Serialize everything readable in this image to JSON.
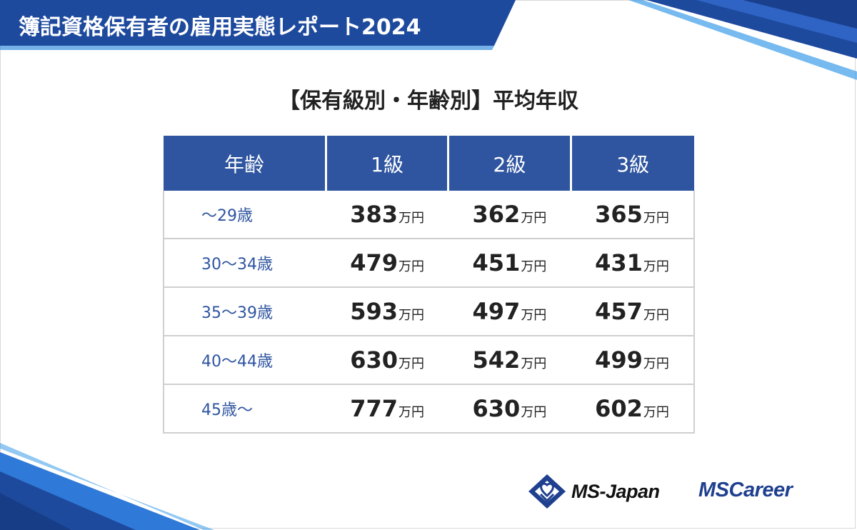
{
  "report": {
    "title": "簿記資格保有者の雇用実態レポート2024",
    "subtitle": "【保有級別・年齢別】平均年収"
  },
  "table": {
    "headers": [
      "年齢",
      "1級",
      "2級",
      "3級"
    ],
    "unit": "万円",
    "rows": [
      {
        "age": "〜29歳",
        "values": [
          "383",
          "362",
          "365"
        ]
      },
      {
        "age": "30〜34歳",
        "values": [
          "479",
          "451",
          "431"
        ]
      },
      {
        "age": "35〜39歳",
        "values": [
          "593",
          "497",
          "457"
        ]
      },
      {
        "age": "40〜44歳",
        "values": [
          "630",
          "542",
          "499"
        ]
      },
      {
        "age": "45歳〜",
        "values": [
          "777",
          "630",
          "602"
        ]
      }
    ]
  },
  "logos": {
    "ms_japan": "MS-Japan",
    "ms_career": "MSCareer"
  },
  "colors": {
    "brand_blue": "#2f55a0",
    "banner_blue": "#1e4a9e",
    "accent_light_blue": "#3b8fe0"
  }
}
